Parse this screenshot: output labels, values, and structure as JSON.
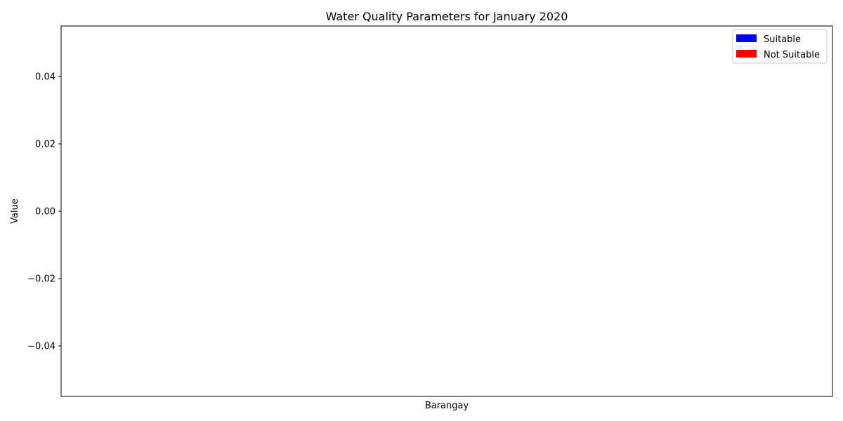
{
  "chart_data": {
    "type": "bar",
    "title": "Water Quality Parameters for January 2020",
    "xlabel": "Barangay",
    "ylabel": "Value",
    "categories": [],
    "series": [],
    "ylim": [
      -0.055,
      0.055
    ],
    "yticks": [
      0.04,
      0.02,
      0.0,
      -0.02,
      -0.04
    ],
    "ytick_labels": [
      "0.04",
      "0.02",
      "0.00",
      "−0.02",
      "−0.04"
    ],
    "grid": false,
    "legend": {
      "placement": "top-right",
      "entries": [
        {
          "label": "Suitable",
          "color": "#0000ff"
        },
        {
          "label": "Not Suitable",
          "color": "#ff0000"
        }
      ]
    }
  }
}
